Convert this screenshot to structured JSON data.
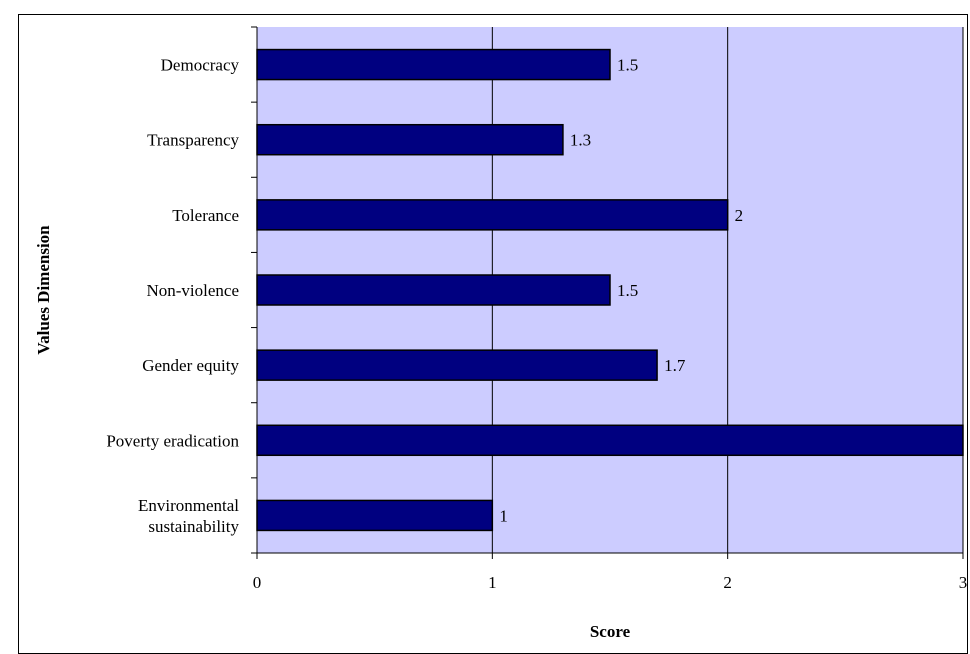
{
  "chart_data": {
    "type": "bar",
    "orientation": "horizontal",
    "title": "",
    "xlabel": "Score",
    "ylabel": "Values Dimension",
    "xlim": [
      0,
      3
    ],
    "xticks": [
      "0",
      "1",
      "2",
      "3"
    ],
    "grid": "vertical",
    "plot_background": "#ccccff",
    "bar_color": "#000080",
    "categories": [
      [
        "Democracy"
      ],
      [
        "Transparency"
      ],
      [
        "Tolerance"
      ],
      [
        "Non-violence"
      ],
      [
        "Gender equity"
      ],
      [
        "Poverty eradication"
      ],
      [
        "Environmental",
        "sustainability"
      ]
    ],
    "values": [
      1.5,
      1.3,
      2,
      1.5,
      1.7,
      3,
      1
    ],
    "data_labels": [
      "1.5",
      "1.3",
      "2",
      "1.5",
      "1.7",
      "",
      "1"
    ]
  }
}
